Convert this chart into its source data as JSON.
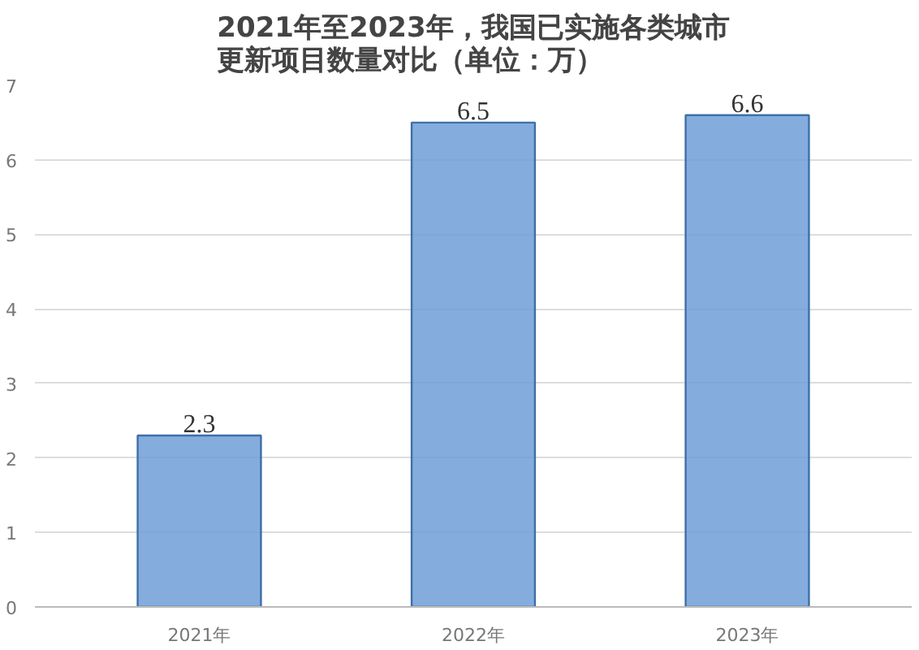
{
  "chart_data": {
    "type": "bar",
    "title": "2021年至2023年，我国已实施各类城市更新项目数量对比（单位：万）",
    "categories": [
      "2021年",
      "2022年",
      "2023年"
    ],
    "values": [
      2.3,
      6.5,
      6.6
    ],
    "color": "#6f9fd8",
    "ylim": [
      0,
      7
    ],
    "yticks": [
      0,
      1,
      2,
      3,
      4,
      5,
      6,
      7
    ],
    "grid": "y",
    "data_labels": true
  }
}
